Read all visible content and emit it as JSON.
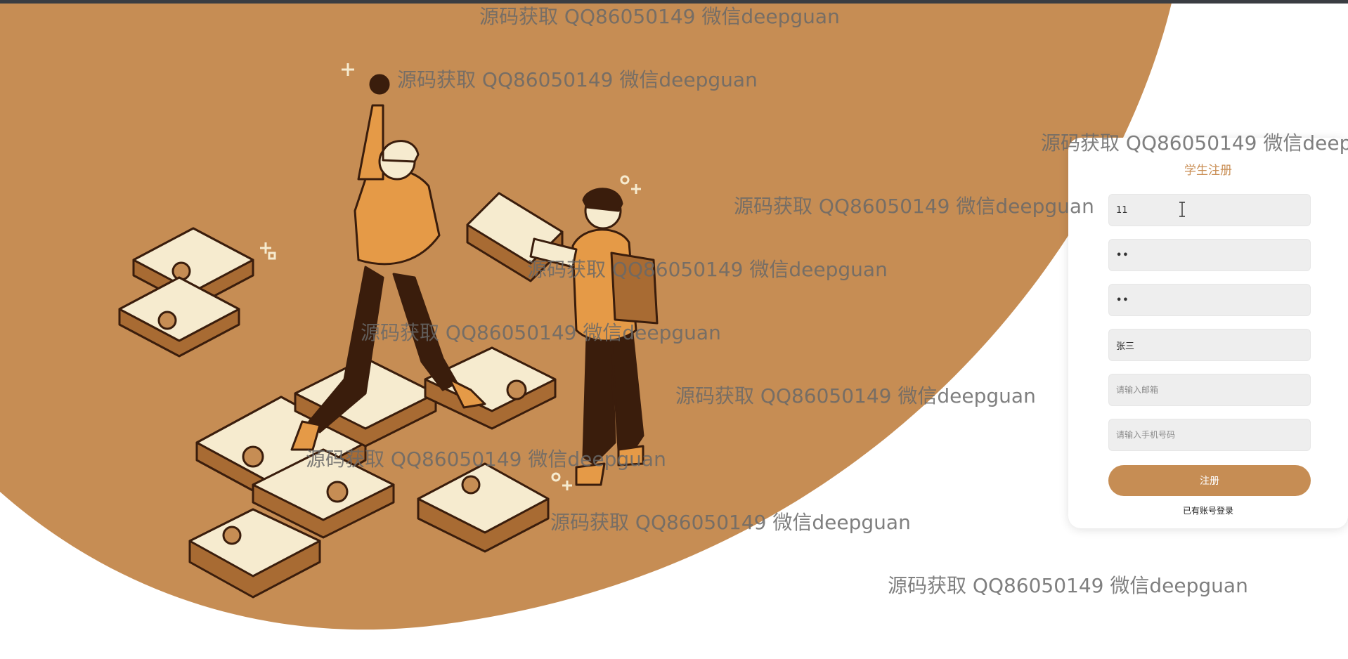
{
  "colors": {
    "brand": "#c68d54",
    "background": "#ffffff",
    "title": "#c98e54"
  },
  "form": {
    "title": "学生注册",
    "fields": [
      {
        "name": "username",
        "value": "11",
        "placeholder": ""
      },
      {
        "name": "password",
        "value": "11",
        "placeholder": ""
      },
      {
        "name": "confirm_password",
        "value": "11",
        "placeholder": ""
      },
      {
        "name": "real_name",
        "value": "张三",
        "placeholder": ""
      },
      {
        "name": "email",
        "value": "",
        "placeholder": "请输入邮箱"
      },
      {
        "name": "phone",
        "value": "",
        "placeholder": "请输入手机号码"
      }
    ],
    "submit_label": "注册",
    "login_link": "已有账号登录"
  },
  "watermark": {
    "text": "源码获取 QQ86050149 微信deepguan"
  },
  "illustration": {
    "icon": "puzzle-teamwork-illustration"
  }
}
